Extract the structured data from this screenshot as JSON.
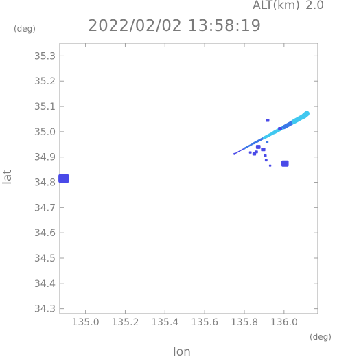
{
  "header": {
    "alt_label": "ALT(km)",
    "alt_value": "2.0",
    "timestamp": "2022/02/02 13:58:19"
  },
  "chart_data": {
    "type": "scatter",
    "title": "2022/02/02 13:58:19",
    "xlabel": "lon",
    "ylabel": "lat",
    "x_unit": "(deg)",
    "y_unit": "(deg)",
    "xlim": [
      134.87,
      136.17
    ],
    "ylim": [
      34.28,
      35.35
    ],
    "xticks": [
      "135.0",
      "135.2",
      "135.4",
      "135.6",
      "135.8",
      "136.0"
    ],
    "yticks": [
      "34.3",
      "34.4",
      "34.5",
      "34.6",
      "34.7",
      "34.8",
      "34.9",
      "35.0",
      "35.1",
      "35.2",
      "35.3"
    ],
    "grid": false,
    "colors": {
      "axis": "#a0a0a0",
      "echo_light": "#40c8f0",
      "echo_mid": "#3a78e8",
      "echo_dark": "#4a4ae8"
    },
    "echo_band": [
      {
        "lon": 135.75,
        "lat": 34.912,
        "level": "dark"
      },
      {
        "lon": 135.8,
        "lat": 34.934,
        "level": "mid"
      },
      {
        "lon": 135.85,
        "lat": 34.955,
        "level": "mid"
      },
      {
        "lon": 135.9,
        "lat": 34.976,
        "level": "light"
      },
      {
        "lon": 135.95,
        "lat": 34.997,
        "level": "light"
      },
      {
        "lon": 136.0,
        "lat": 35.018,
        "level": "mid"
      },
      {
        "lon": 136.05,
        "lat": 35.04,
        "level": "light"
      },
      {
        "lon": 136.1,
        "lat": 35.062,
        "level": "light"
      },
      {
        "lon": 136.115,
        "lat": 35.072,
        "level": "light"
      }
    ],
    "echo_cells": [
      {
        "lon": 134.89,
        "lat": 34.815,
        "size": 3.2,
        "level": "dark"
      },
      {
        "lon": 136.005,
        "lat": 34.874,
        "size": 2.2,
        "level": "dark"
      },
      {
        "lon": 135.917,
        "lat": 35.045,
        "size": 1.1,
        "level": "dark"
      },
      {
        "lon": 135.87,
        "lat": 34.94,
        "size": 1.4,
        "level": "dark"
      },
      {
        "lon": 135.895,
        "lat": 34.93,
        "size": 1.3,
        "level": "dark"
      },
      {
        "lon": 135.86,
        "lat": 34.92,
        "size": 1.0,
        "level": "dark"
      },
      {
        "lon": 135.85,
        "lat": 34.912,
        "size": 1.1,
        "level": "dark"
      },
      {
        "lon": 135.83,
        "lat": 34.918,
        "size": 0.8,
        "level": "dark"
      },
      {
        "lon": 135.905,
        "lat": 34.905,
        "size": 0.9,
        "level": "dark"
      },
      {
        "lon": 135.91,
        "lat": 34.887,
        "size": 0.8,
        "level": "dark"
      },
      {
        "lon": 135.93,
        "lat": 34.866,
        "size": 0.7,
        "level": "dark"
      },
      {
        "lon": 135.915,
        "lat": 34.96,
        "size": 0.8,
        "level": "mid"
      },
      {
        "lon": 135.98,
        "lat": 35.012,
        "size": 1.2,
        "level": "dark"
      }
    ]
  }
}
